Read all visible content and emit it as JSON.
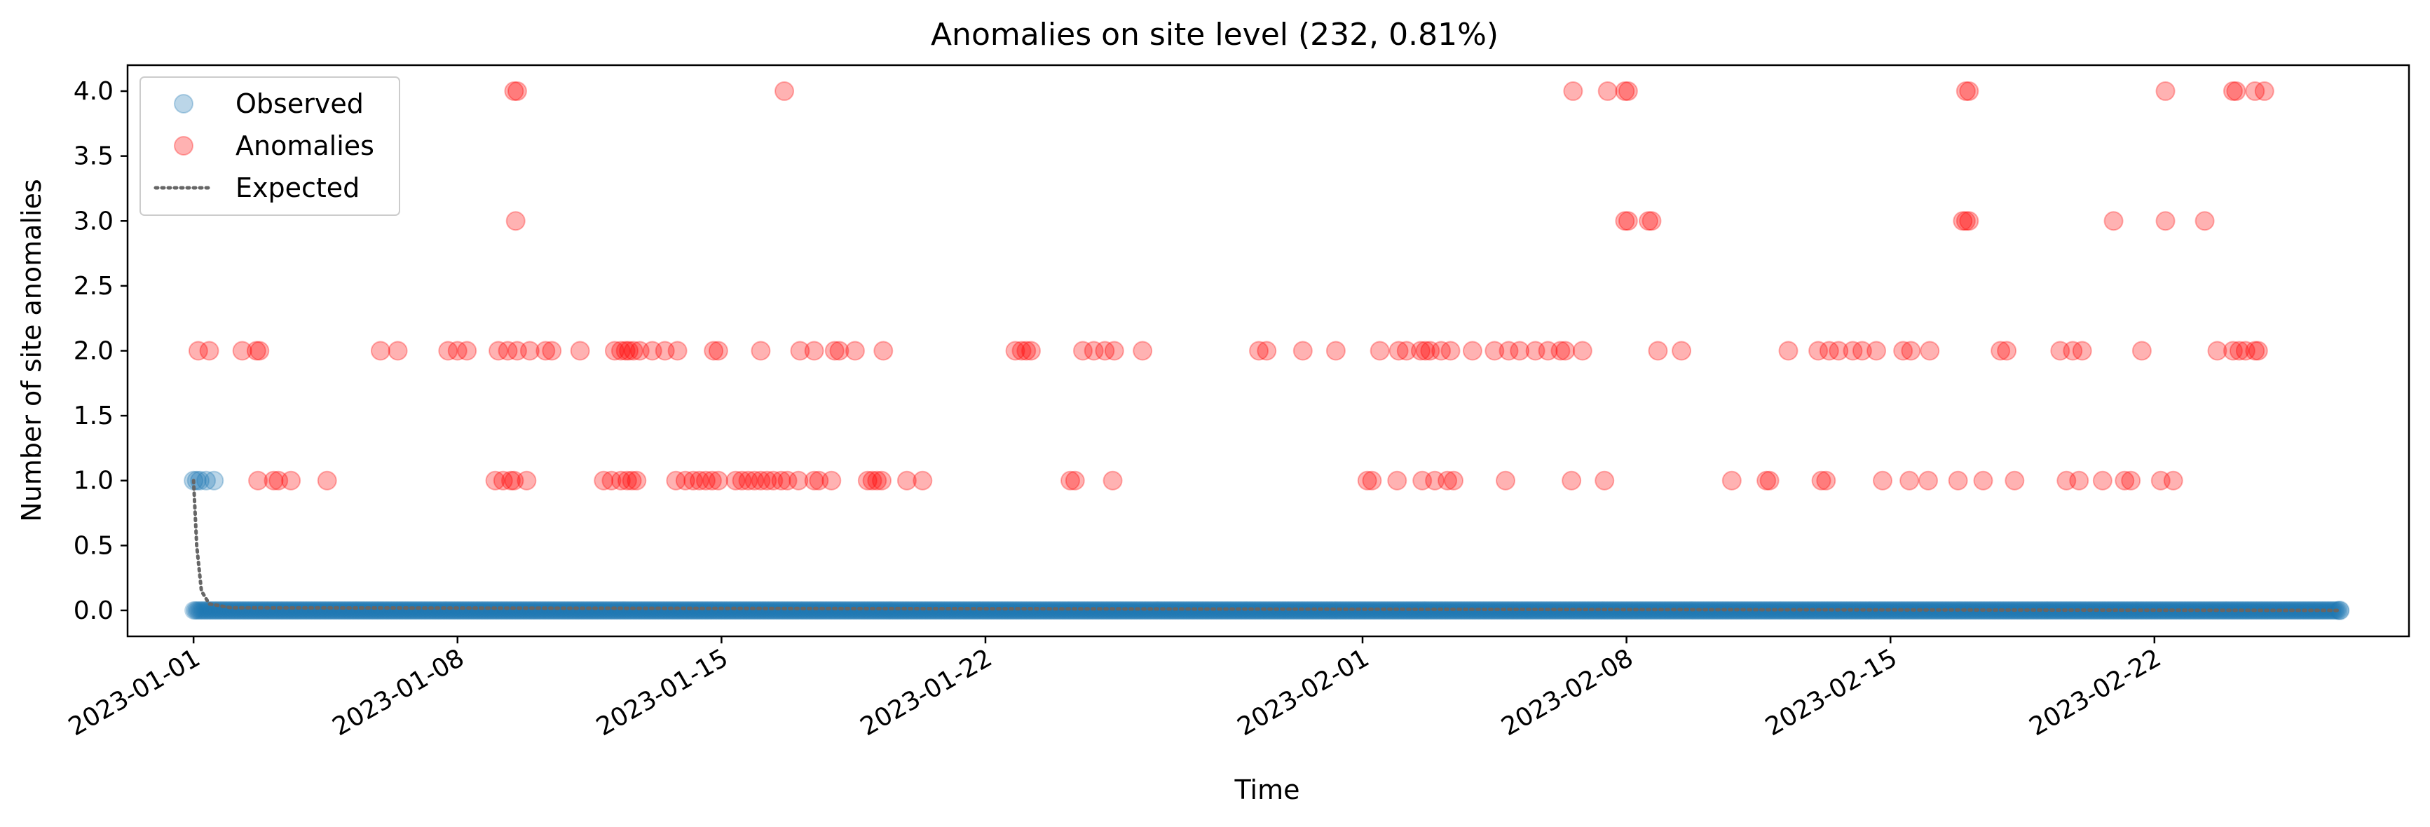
{
  "chart_data": {
    "type": "scatter",
    "title": "Anomalies on site level (232, 0.81%)",
    "xlabel": "Time",
    "ylabel": "Number of site anomalies",
    "x_start": "2022-12-30T06:00",
    "x_end": "2023-02-28T18:00",
    "ylim": [
      -0.2,
      4.2
    ],
    "grid": false,
    "legend_position": "upper-left",
    "x_ticks": [
      "2023-01-01",
      "2023-01-08",
      "2023-01-15",
      "2023-01-22",
      "2023-02-01",
      "2023-02-08",
      "2023-02-15",
      "2023-02-22"
    ],
    "y_ticks": [
      "0.0",
      "0.5",
      "1.0",
      "1.5",
      "2.0",
      "2.5",
      "3.0",
      "3.5",
      "4.0"
    ],
    "legend": [
      "Observed",
      "Anomalies",
      "Expected"
    ],
    "colors": {
      "observed": "#1f77b4",
      "anomalies": "#ff0000",
      "expected": "#666666"
    },
    "series": [
      {
        "name": "Observed",
        "baseline_range": [
          "2023-01-01T00:00",
          "2023-02-26T22:00"
        ],
        "baseline_value": 0,
        "points": [
          {
            "x": "2023-01-01T00:00",
            "y": 1
          },
          {
            "x": "2023-01-01T02:00",
            "y": 1
          },
          {
            "x": "2023-01-01T04:00",
            "y": 1
          },
          {
            "x": "2023-01-01T08:00",
            "y": 1
          },
          {
            "x": "2023-01-01T13:00",
            "y": 1
          },
          {
            "x": "2023-02-26T22:00",
            "y": 0
          }
        ]
      },
      {
        "name": "Anomalies",
        "points": [
          {
            "x": "2023-01-01T03:00",
            "y": 2
          },
          {
            "x": "2023-01-01T10:00",
            "y": 2
          },
          {
            "x": "2023-01-02T07:00",
            "y": 2
          },
          {
            "x": "2023-01-02T16:00",
            "y": 2
          },
          {
            "x": "2023-01-02T18:00",
            "y": 2
          },
          {
            "x": "2023-01-02T17:00",
            "y": 1
          },
          {
            "x": "2023-01-03T03:00",
            "y": 1
          },
          {
            "x": "2023-01-03T06:00",
            "y": 1
          },
          {
            "x": "2023-01-03T14:00",
            "y": 1
          },
          {
            "x": "2023-01-04T13:00",
            "y": 1
          },
          {
            "x": "2023-01-05T23:00",
            "y": 2
          },
          {
            "x": "2023-01-06T10:00",
            "y": 2
          },
          {
            "x": "2023-01-07T18:00",
            "y": 2
          },
          {
            "x": "2023-01-08T00:00",
            "y": 2
          },
          {
            "x": "2023-01-08T06:00",
            "y": 2
          },
          {
            "x": "2023-01-09T00:00",
            "y": 1
          },
          {
            "x": "2023-01-09T05:00",
            "y": 1
          },
          {
            "x": "2023-01-09T10:00",
            "y": 1
          },
          {
            "x": "2023-01-09T12:00",
            "y": 1
          },
          {
            "x": "2023-01-09T20:00",
            "y": 1
          },
          {
            "x": "2023-01-09T02:00",
            "y": 2
          },
          {
            "x": "2023-01-09T08:00",
            "y": 2
          },
          {
            "x": "2023-01-09T14:00",
            "y": 2
          },
          {
            "x": "2023-01-09T22:00",
            "y": 2
          },
          {
            "x": "2023-01-10T08:00",
            "y": 2
          },
          {
            "x": "2023-01-10T12:00",
            "y": 2
          },
          {
            "x": "2023-01-11T06:00",
            "y": 2
          },
          {
            "x": "2023-01-09T13:00",
            "y": 3
          },
          {
            "x": "2023-01-09T12:00",
            "y": 4
          },
          {
            "x": "2023-01-09T14:00",
            "y": 4
          },
          {
            "x": "2023-01-11T21:00",
            "y": 1
          },
          {
            "x": "2023-01-12T02:00",
            "y": 1
          },
          {
            "x": "2023-01-12T08:00",
            "y": 1
          },
          {
            "x": "2023-01-12T12:00",
            "y": 1
          },
          {
            "x": "2023-01-12T15:00",
            "y": 1
          },
          {
            "x": "2023-01-12T18:00",
            "y": 1
          },
          {
            "x": "2023-01-12T04:00",
            "y": 2
          },
          {
            "x": "2023-01-12T08:00",
            "y": 2
          },
          {
            "x": "2023-01-12T11:00",
            "y": 2
          },
          {
            "x": "2023-01-12T13:00",
            "y": 2
          },
          {
            "x": "2023-01-12T16:00",
            "y": 2
          },
          {
            "x": "2023-01-12T20:00",
            "y": 2
          },
          {
            "x": "2023-01-13T04:00",
            "y": 2
          },
          {
            "x": "2023-01-13T12:00",
            "y": 2
          },
          {
            "x": "2023-01-13T20:00",
            "y": 2
          },
          {
            "x": "2023-01-13T19:00",
            "y": 1
          },
          {
            "x": "2023-01-14T01:00",
            "y": 1
          },
          {
            "x": "2023-01-14T06:00",
            "y": 1
          },
          {
            "x": "2023-01-14T10:00",
            "y": 1
          },
          {
            "x": "2023-01-14T14:00",
            "y": 1
          },
          {
            "x": "2023-01-14T18:00",
            "y": 1
          },
          {
            "x": "2023-01-14T22:00",
            "y": 1
          },
          {
            "x": "2023-01-14T19:00",
            "y": 2
          },
          {
            "x": "2023-01-14T22:00",
            "y": 2
          },
          {
            "x": "2023-01-15T09:00",
            "y": 1
          },
          {
            "x": "2023-01-15T13:00",
            "y": 1
          },
          {
            "x": "2023-01-15T17:00",
            "y": 1
          },
          {
            "x": "2023-01-15T21:00",
            "y": 1
          },
          {
            "x": "2023-01-16T01:00",
            "y": 1
          },
          {
            "x": "2023-01-16T05:00",
            "y": 1
          },
          {
            "x": "2023-01-16T09:00",
            "y": 1
          },
          {
            "x": "2023-01-16T14:00",
            "y": 1
          },
          {
            "x": "2023-01-16T18:00",
            "y": 1
          },
          {
            "x": "2023-01-16T01:00",
            "y": 2
          },
          {
            "x": "2023-01-16T16:00",
            "y": 4
          },
          {
            "x": "2023-01-17T01:00",
            "y": 1
          },
          {
            "x": "2023-01-17T11:00",
            "y": 1
          },
          {
            "x": "2023-01-17T14:00",
            "y": 1
          },
          {
            "x": "2023-01-17T22:00",
            "y": 1
          },
          {
            "x": "2023-01-17T02:00",
            "y": 2
          },
          {
            "x": "2023-01-17T11:00",
            "y": 2
          },
          {
            "x": "2023-01-18T00:00",
            "y": 2
          },
          {
            "x": "2023-01-18T03:00",
            "y": 2
          },
          {
            "x": "2023-01-18T13:00",
            "y": 2
          },
          {
            "x": "2023-01-18T21:00",
            "y": 1
          },
          {
            "x": "2023-01-19T00:00",
            "y": 1
          },
          {
            "x": "2023-01-19T03:00",
            "y": 1
          },
          {
            "x": "2023-01-19T06:00",
            "y": 1
          },
          {
            "x": "2023-01-19T07:00",
            "y": 2
          },
          {
            "x": "2023-01-19T22:00",
            "y": 1
          },
          {
            "x": "2023-01-20T08:00",
            "y": 1
          },
          {
            "x": "2023-01-22T19:00",
            "y": 2
          },
          {
            "x": "2023-01-22T23:00",
            "y": 2
          },
          {
            "x": "2023-01-23T02:00",
            "y": 2
          },
          {
            "x": "2023-01-23T05:00",
            "y": 2
          },
          {
            "x": "2023-01-24T06:00",
            "y": 1
          },
          {
            "x": "2023-01-24T09:00",
            "y": 1
          },
          {
            "x": "2023-01-25T09:00",
            "y": 1
          },
          {
            "x": "2023-01-24T14:00",
            "y": 2
          },
          {
            "x": "2023-01-24T21:00",
            "y": 2
          },
          {
            "x": "2023-01-25T04:00",
            "y": 2
          },
          {
            "x": "2023-01-25T10:00",
            "y": 2
          },
          {
            "x": "2023-01-26T04:00",
            "y": 2
          },
          {
            "x": "2023-01-29T06:00",
            "y": 2
          },
          {
            "x": "2023-01-29T11:00",
            "y": 2
          },
          {
            "x": "2023-01-30T10:00",
            "y": 2
          },
          {
            "x": "2023-01-31T07:00",
            "y": 2
          },
          {
            "x": "2023-02-01T03:00",
            "y": 1
          },
          {
            "x": "2023-02-01T06:00",
            "y": 1
          },
          {
            "x": "2023-02-01T22:00",
            "y": 1
          },
          {
            "x": "2023-02-02T14:00",
            "y": 1
          },
          {
            "x": "2023-02-02T22:00",
            "y": 1
          },
          {
            "x": "2023-02-03T06:00",
            "y": 1
          },
          {
            "x": "2023-02-03T10:00",
            "y": 1
          },
          {
            "x": "2023-02-01T11:00",
            "y": 2
          },
          {
            "x": "2023-02-01T23:00",
            "y": 2
          },
          {
            "x": "2023-02-02T04:00",
            "y": 2
          },
          {
            "x": "2023-02-02T13:00",
            "y": 2
          },
          {
            "x": "2023-02-02T16:00",
            "y": 2
          },
          {
            "x": "2023-02-02T19:00",
            "y": 2
          },
          {
            "x": "2023-02-03T02:00",
            "y": 2
          },
          {
            "x": "2023-02-03T08:00",
            "y": 2
          },
          {
            "x": "2023-02-03T22:00",
            "y": 2
          },
          {
            "x": "2023-02-04T12:00",
            "y": 2
          },
          {
            "x": "2023-02-04T21:00",
            "y": 2
          },
          {
            "x": "2023-02-05T04:00",
            "y": 2
          },
          {
            "x": "2023-02-05T14:00",
            "y": 2
          },
          {
            "x": "2023-02-05T22:00",
            "y": 2
          },
          {
            "x": "2023-02-06T06:00",
            "y": 2
          },
          {
            "x": "2023-02-06T09:00",
            "y": 2
          },
          {
            "x": "2023-02-06T20:00",
            "y": 2
          },
          {
            "x": "2023-02-04T19:00",
            "y": 1
          },
          {
            "x": "2023-02-06T13:00",
            "y": 1
          },
          {
            "x": "2023-02-07T10:00",
            "y": 1
          },
          {
            "x": "2023-02-06T14:00",
            "y": 4
          },
          {
            "x": "2023-02-07T12:00",
            "y": 4
          },
          {
            "x": "2023-02-07T23:00",
            "y": 4
          },
          {
            "x": "2023-02-08T01:00",
            "y": 4
          },
          {
            "x": "2023-02-07T23:00",
            "y": 3
          },
          {
            "x": "2023-02-08T01:00",
            "y": 3
          },
          {
            "x": "2023-02-08T14:00",
            "y": 3
          },
          {
            "x": "2023-02-08T16:00",
            "y": 3
          },
          {
            "x": "2023-02-08T20:00",
            "y": 2
          },
          {
            "x": "2023-02-09T11:00",
            "y": 2
          },
          {
            "x": "2023-02-10T19:00",
            "y": 1
          },
          {
            "x": "2023-02-11T17:00",
            "y": 1
          },
          {
            "x": "2023-02-11T19:00",
            "y": 1
          },
          {
            "x": "2023-02-13T04:00",
            "y": 1
          },
          {
            "x": "2023-02-13T07:00",
            "y": 1
          },
          {
            "x": "2023-02-12T07:00",
            "y": 2
          },
          {
            "x": "2023-02-13T02:00",
            "y": 2
          },
          {
            "x": "2023-02-13T09:00",
            "y": 2
          },
          {
            "x": "2023-02-13T15:00",
            "y": 2
          },
          {
            "x": "2023-02-14T00:00",
            "y": 2
          },
          {
            "x": "2023-02-14T06:00",
            "y": 2
          },
          {
            "x": "2023-02-14T15:00",
            "y": 2
          },
          {
            "x": "2023-02-15T08:00",
            "y": 2
          },
          {
            "x": "2023-02-15T13:00",
            "y": 2
          },
          {
            "x": "2023-02-16T01:00",
            "y": 2
          },
          {
            "x": "2023-02-14T19:00",
            "y": 1
          },
          {
            "x": "2023-02-15T12:00",
            "y": 1
          },
          {
            "x": "2023-02-16T00:00",
            "y": 1
          },
          {
            "x": "2023-02-16T19:00",
            "y": 1
          },
          {
            "x": "2023-02-17T11:00",
            "y": 1
          },
          {
            "x": "2023-02-18T07:00",
            "y": 1
          },
          {
            "x": "2023-02-16T22:00",
            "y": 3
          },
          {
            "x": "2023-02-17T00:00",
            "y": 3
          },
          {
            "x": "2023-02-17T02:00",
            "y": 3
          },
          {
            "x": "2023-02-17T00:00",
            "y": 4
          },
          {
            "x": "2023-02-17T02:00",
            "y": 4
          },
          {
            "x": "2023-02-17T22:00",
            "y": 2
          },
          {
            "x": "2023-02-18T02:00",
            "y": 2
          },
          {
            "x": "2023-02-19T12:00",
            "y": 2
          },
          {
            "x": "2023-02-19T20:00",
            "y": 2
          },
          {
            "x": "2023-02-20T02:00",
            "y": 2
          },
          {
            "x": "2023-02-19T16:00",
            "y": 1
          },
          {
            "x": "2023-02-20T00:00",
            "y": 1
          },
          {
            "x": "2023-02-20T15:00",
            "y": 1
          },
          {
            "x": "2023-02-21T05:00",
            "y": 1
          },
          {
            "x": "2023-02-21T09:00",
            "y": 1
          },
          {
            "x": "2023-02-22T04:00",
            "y": 1
          },
          {
            "x": "2023-02-22T12:00",
            "y": 1
          },
          {
            "x": "2023-02-20T22:00",
            "y": 3
          },
          {
            "x": "2023-02-21T16:00",
            "y": 2
          },
          {
            "x": "2023-02-22T07:00",
            "y": 3
          },
          {
            "x": "2023-02-22T07:00",
            "y": 4
          },
          {
            "x": "2023-02-23T08:00",
            "y": 3
          },
          {
            "x": "2023-02-23T16:00",
            "y": 2
          },
          {
            "x": "2023-02-24T02:00",
            "y": 2
          },
          {
            "x": "2023-02-24T06:00",
            "y": 2
          },
          {
            "x": "2023-02-24T10:00",
            "y": 2
          },
          {
            "x": "2023-02-24T16:00",
            "y": 2
          },
          {
            "x": "2023-02-24T18:00",
            "y": 2
          },
          {
            "x": "2023-02-24T02:00",
            "y": 4
          },
          {
            "x": "2023-02-24T04:00",
            "y": 4
          },
          {
            "x": "2023-02-24T16:00",
            "y": 4
          },
          {
            "x": "2023-02-24T22:00",
            "y": 4
          }
        ]
      },
      {
        "name": "Expected",
        "points": [
          {
            "x": "2023-01-01T00:00",
            "y": 1
          },
          {
            "x": "2023-01-01T02:00",
            "y": 0.5
          },
          {
            "x": "2023-01-01T05:00",
            "y": 0.15
          },
          {
            "x": "2023-01-01T10:00",
            "y": 0.05
          },
          {
            "x": "2023-01-02T00:00",
            "y": 0.02
          },
          {
            "x": "2023-02-26T22:00",
            "y": 0.0
          }
        ]
      }
    ]
  }
}
